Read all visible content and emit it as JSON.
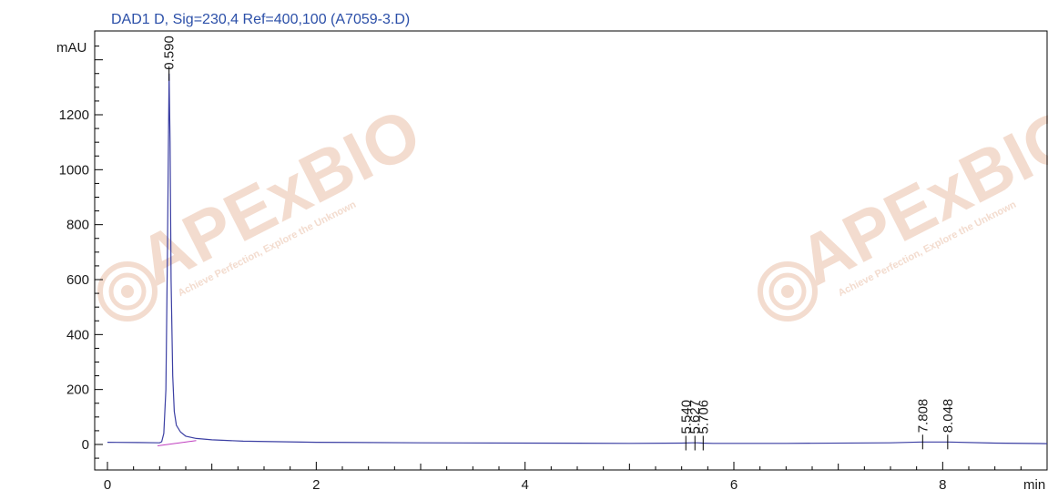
{
  "chart_data": {
    "type": "line",
    "title": "DAD1 D, Sig=230,4 Ref=400,100 (A7059-3.D)",
    "ylabel": "mAU",
    "xlabel": "min",
    "xlim": [
      0,
      9
    ],
    "ylim": [
      -80,
      1450
    ],
    "x_ticks": [
      0,
      2,
      4,
      6,
      8
    ],
    "y_ticks": [
      0,
      200,
      400,
      600,
      800,
      1000,
      1200
    ],
    "grid": false,
    "signal": {
      "x": [
        0,
        0.3,
        0.5,
        0.52,
        0.54,
        0.56,
        0.575,
        0.59,
        0.6,
        0.61,
        0.625,
        0.64,
        0.66,
        0.7,
        0.75,
        0.85,
        1.0,
        1.3,
        2.0,
        3.0,
        4.0,
        5.0,
        5.5,
        5.6,
        5.65,
        5.7,
        5.8,
        6.5,
        7.5,
        7.8,
        8.05,
        8.5,
        9.0
      ],
      "y": [
        8,
        7,
        6,
        10,
        40,
        200,
        700,
        1350,
        1100,
        600,
        250,
        120,
        70,
        45,
        30,
        22,
        17,
        12,
        8,
        6,
        5,
        4,
        5,
        6,
        6,
        5,
        4,
        4,
        6,
        9,
        9,
        5,
        3
      ]
    },
    "baseline": {
      "x": [
        0.48,
        0.85
      ],
      "y": [
        -5,
        14
      ]
    },
    "peaks": [
      {
        "rt": 0.59,
        "label": "0.590",
        "height": 1350
      },
      {
        "rt": 5.54,
        "label": "5.540",
        "height": 5
      },
      {
        "rt": 5.627,
        "label": "5.627",
        "height": 5
      },
      {
        "rt": 5.706,
        "label": "5.706",
        "height": 5
      },
      {
        "rt": 7.808,
        "label": "7.808",
        "height": 9
      },
      {
        "rt": 8.048,
        "label": "8.048",
        "height": 9
      }
    ]
  },
  "watermark": {
    "brand": "APExBIO",
    "tagline": "Achieve Perfection, Explore the Unknown"
  },
  "colors": {
    "signal": "#3b3fa3",
    "baseline": "#c040c0",
    "title": "#2b4fa8",
    "watermark": "#f3dccf"
  }
}
